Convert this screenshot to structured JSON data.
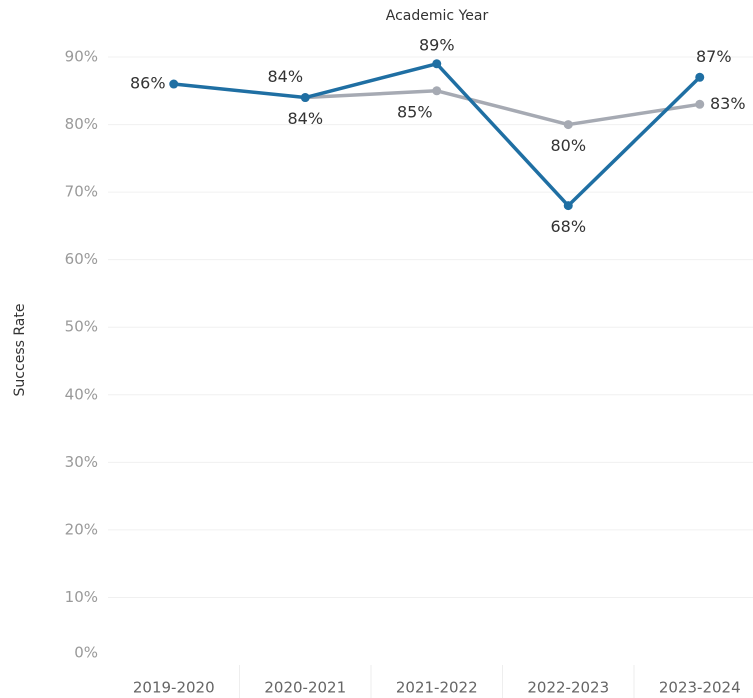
{
  "chart_data": {
    "type": "line",
    "title": "Academic Year",
    "y_label": "Success Rate",
    "categories": [
      "2019-2020",
      "2020-2021",
      "2021-2022",
      "2022-2023",
      "2023-2024"
    ],
    "series": [
      {
        "color": "#a6aab3",
        "values": [
          null,
          84,
          85,
          80,
          83
        ],
        "value_labels": [
          null,
          "84%",
          "85%",
          "80%",
          "83%"
        ]
      },
      {
        "color": "#1f6fa3",
        "values": [
          86,
          84,
          89,
          68,
          87
        ],
        "value_labels": [
          "86%",
          "84%",
          "89%",
          "68%",
          "87%"
        ]
      }
    ],
    "ylim": [
      0,
      92
    ],
    "yticks": [
      {
        "value": 0,
        "label": "0%"
      },
      {
        "value": 10,
        "label": "10%"
      },
      {
        "value": 20,
        "label": "20%"
      },
      {
        "value": 30,
        "label": "30%"
      },
      {
        "value": 40,
        "label": "40%"
      },
      {
        "value": 50,
        "label": "50%"
      },
      {
        "value": 60,
        "label": "60%"
      },
      {
        "value": 70,
        "label": "70%"
      },
      {
        "value": 80,
        "label": "80%"
      },
      {
        "value": 90,
        "label": "90%"
      }
    ],
    "grid": true
  }
}
